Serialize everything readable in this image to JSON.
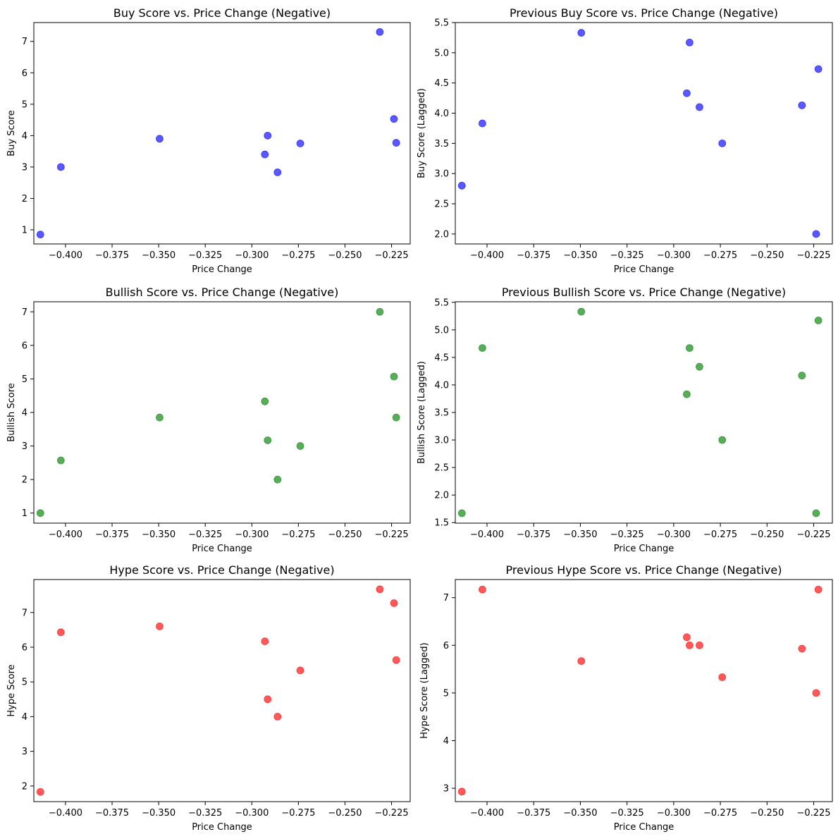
{
  "chart_data": [
    {
      "type": "scatter",
      "title": "Buy Score vs. Price Change (Negative)",
      "xlabel": "Price Change",
      "ylabel": "Buy Score",
      "color": "#0000ff",
      "xlim": [
        -0.417,
        -0.215
      ],
      "ylim": [
        0.55,
        7.6
      ],
      "xticks": [
        -0.4,
        -0.375,
        -0.35,
        -0.325,
        -0.3,
        -0.275,
        -0.25,
        -0.225
      ],
      "xtick_labels": [
        "−0.400",
        "−0.375",
        "−0.350",
        "−0.325",
        "−0.300",
        "−0.275",
        "−0.250",
        "−0.225"
      ],
      "yticks": [
        1,
        2,
        3,
        4,
        5,
        6,
        7
      ],
      "ytick_labels": [
        "1",
        "2",
        "3",
        "4",
        "5",
        "6",
        "7"
      ],
      "points": [
        {
          "x": -0.4135,
          "y": 0.85
        },
        {
          "x": -0.4025,
          "y": 3.0
        },
        {
          "x": -0.3495,
          "y": 3.9
        },
        {
          "x": -0.293,
          "y": 3.4
        },
        {
          "x": -0.2915,
          "y": 4.0
        },
        {
          "x": -0.2862,
          "y": 2.83
        },
        {
          "x": -0.274,
          "y": 3.75
        },
        {
          "x": -0.2313,
          "y": 7.3
        },
        {
          "x": -0.2237,
          "y": 4.53
        },
        {
          "x": -0.2225,
          "y": 3.77
        }
      ]
    },
    {
      "type": "scatter",
      "title": "Previous Buy Score vs. Price Change (Negative)",
      "xlabel": "Price Change",
      "ylabel": "Buy Score (Lagged)",
      "color": "#0000ff",
      "xlim": [
        -0.417,
        -0.215
      ],
      "ylim": [
        1.835,
        5.5
      ],
      "xticks": [
        -0.4,
        -0.375,
        -0.35,
        -0.325,
        -0.3,
        -0.275,
        -0.25,
        -0.225
      ],
      "xtick_labels": [
        "−0.400",
        "−0.375",
        "−0.350",
        "−0.325",
        "−0.300",
        "−0.275",
        "−0.250",
        "−0.225"
      ],
      "yticks": [
        2.0,
        2.5,
        3.0,
        3.5,
        4.0,
        4.5,
        5.0,
        5.5
      ],
      "ytick_labels": [
        "2.0",
        "2.5",
        "3.0",
        "3.5",
        "4.0",
        "4.5",
        "5.0",
        "5.5"
      ],
      "points": [
        {
          "x": -0.4135,
          "y": 2.8
        },
        {
          "x": -0.4025,
          "y": 3.83
        },
        {
          "x": -0.3495,
          "y": 5.33
        },
        {
          "x": -0.293,
          "y": 4.33
        },
        {
          "x": -0.2915,
          "y": 5.17
        },
        {
          "x": -0.2862,
          "y": 4.1
        },
        {
          "x": -0.274,
          "y": 3.5
        },
        {
          "x": -0.2313,
          "y": 4.13
        },
        {
          "x": -0.2237,
          "y": 2.0
        },
        {
          "x": -0.2225,
          "y": 4.73
        }
      ]
    },
    {
      "type": "scatter",
      "title": "Bullish Score vs. Price Change (Negative)",
      "xlabel": "Price Change",
      "ylabel": "Bullish Score",
      "color": "#008000",
      "xlim": [
        -0.417,
        -0.215
      ],
      "ylim": [
        0.7,
        7.3
      ],
      "xticks": [
        -0.4,
        -0.375,
        -0.35,
        -0.325,
        -0.3,
        -0.275,
        -0.25,
        -0.225
      ],
      "xtick_labels": [
        "−0.400",
        "−0.375",
        "−0.350",
        "−0.325",
        "−0.300",
        "−0.275",
        "−0.250",
        "−0.225"
      ],
      "yticks": [
        1,
        2,
        3,
        4,
        5,
        6,
        7
      ],
      "ytick_labels": [
        "1",
        "2",
        "3",
        "4",
        "5",
        "6",
        "7"
      ],
      "points": [
        {
          "x": -0.4135,
          "y": 1.0
        },
        {
          "x": -0.4025,
          "y": 2.57
        },
        {
          "x": -0.3495,
          "y": 3.85
        },
        {
          "x": -0.293,
          "y": 4.33
        },
        {
          "x": -0.2915,
          "y": 3.17
        },
        {
          "x": -0.2862,
          "y": 2.0
        },
        {
          "x": -0.274,
          "y": 3.0
        },
        {
          "x": -0.2313,
          "y": 7.0
        },
        {
          "x": -0.2237,
          "y": 5.07
        },
        {
          "x": -0.2225,
          "y": 3.85
        }
      ]
    },
    {
      "type": "scatter",
      "title": "Previous Bullish Score vs. Price Change (Negative)",
      "xlabel": "Price Change",
      "ylabel": "Bullish Score (Lagged)",
      "color": "#008000",
      "xlim": [
        -0.417,
        -0.215
      ],
      "ylim": [
        1.49,
        5.51
      ],
      "xticks": [
        -0.4,
        -0.375,
        -0.35,
        -0.325,
        -0.3,
        -0.275,
        -0.25,
        -0.225
      ],
      "xtick_labels": [
        "−0.400",
        "−0.375",
        "−0.350",
        "−0.325",
        "−0.300",
        "−0.275",
        "−0.250",
        "−0.225"
      ],
      "yticks": [
        1.5,
        2.0,
        2.5,
        3.0,
        3.5,
        4.0,
        4.5,
        5.0,
        5.5
      ],
      "ytick_labels": [
        "1.5",
        "2.0",
        "2.5",
        "3.0",
        "3.5",
        "4.0",
        "4.5",
        "5.0",
        "5.5"
      ],
      "points": [
        {
          "x": -0.4135,
          "y": 1.67
        },
        {
          "x": -0.4025,
          "y": 4.67
        },
        {
          "x": -0.3495,
          "y": 5.33
        },
        {
          "x": -0.293,
          "y": 3.83
        },
        {
          "x": -0.2915,
          "y": 4.67
        },
        {
          "x": -0.2862,
          "y": 4.33
        },
        {
          "x": -0.274,
          "y": 3.0
        },
        {
          "x": -0.2313,
          "y": 4.17
        },
        {
          "x": -0.2237,
          "y": 1.67
        },
        {
          "x": -0.2225,
          "y": 5.17
        }
      ]
    },
    {
      "type": "scatter",
      "title": "Hype Score vs. Price Change (Negative)",
      "xlabel": "Price Change",
      "ylabel": "Hype Score",
      "color": "#ff0000",
      "xlim": [
        -0.417,
        -0.215
      ],
      "ylim": [
        1.55,
        7.95
      ],
      "xticks": [
        -0.4,
        -0.375,
        -0.35,
        -0.325,
        -0.3,
        -0.275,
        -0.25,
        -0.225
      ],
      "xtick_labels": [
        "−0.400",
        "−0.375",
        "−0.350",
        "−0.325",
        "−0.300",
        "−0.275",
        "−0.250",
        "−0.225"
      ],
      "yticks": [
        2,
        3,
        4,
        5,
        6,
        7
      ],
      "ytick_labels": [
        "2",
        "3",
        "4",
        "5",
        "6",
        "7"
      ],
      "points": [
        {
          "x": -0.4135,
          "y": 1.83
        },
        {
          "x": -0.4025,
          "y": 6.43
        },
        {
          "x": -0.3495,
          "y": 6.6
        },
        {
          "x": -0.293,
          "y": 6.17
        },
        {
          "x": -0.2915,
          "y": 4.5
        },
        {
          "x": -0.2862,
          "y": 4.0
        },
        {
          "x": -0.274,
          "y": 5.33
        },
        {
          "x": -0.2313,
          "y": 7.67
        },
        {
          "x": -0.2237,
          "y": 7.27
        },
        {
          "x": -0.2225,
          "y": 5.63
        }
      ]
    },
    {
      "type": "scatter",
      "title": "Previous Hype Score vs. Price Change (Negative)",
      "xlabel": "Price Change",
      "ylabel": "Hype Score (Lagged)",
      "color": "#ff0000",
      "xlim": [
        -0.417,
        -0.215
      ],
      "ylim": [
        2.72,
        7.38
      ],
      "xticks": [
        -0.4,
        -0.375,
        -0.35,
        -0.325,
        -0.3,
        -0.275,
        -0.25,
        -0.225
      ],
      "xtick_labels": [
        "−0.400",
        "−0.375",
        "−0.350",
        "−0.325",
        "−0.300",
        "−0.275",
        "−0.250",
        "−0.225"
      ],
      "yticks": [
        3,
        4,
        5,
        6,
        7
      ],
      "ytick_labels": [
        "3",
        "4",
        "5",
        "6",
        "7"
      ],
      "points": [
        {
          "x": -0.4135,
          "y": 2.93
        },
        {
          "x": -0.4025,
          "y": 7.17
        },
        {
          "x": -0.3495,
          "y": 5.67
        },
        {
          "x": -0.293,
          "y": 6.17
        },
        {
          "x": -0.2915,
          "y": 6.0
        },
        {
          "x": -0.2862,
          "y": 6.0
        },
        {
          "x": -0.274,
          "y": 5.33
        },
        {
          "x": -0.2313,
          "y": 5.93
        },
        {
          "x": -0.2237,
          "y": 5.0
        },
        {
          "x": -0.2225,
          "y": 7.17
        }
      ]
    }
  ]
}
